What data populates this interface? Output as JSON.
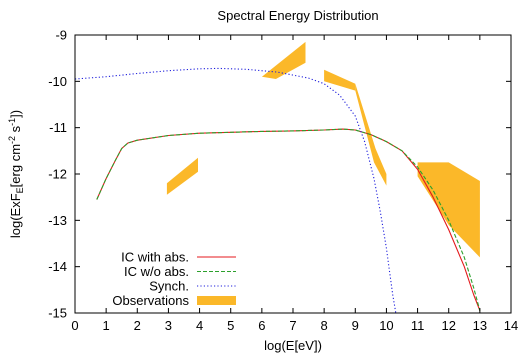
{
  "chart_data": {
    "type": "line",
    "title": "Spectral Energy Distribution",
    "xlabel": "log(E[eV])",
    "ylabel_parts": [
      "log(ExF",
      "E",
      "[erg cm",
      "-2",
      " s",
      "-1",
      "])"
    ],
    "xlim": [
      0,
      14
    ],
    "ylim": [
      -15,
      -9
    ],
    "x_ticks": [
      0,
      1,
      2,
      3,
      4,
      5,
      6,
      7,
      8,
      9,
      10,
      11,
      12,
      13,
      14
    ],
    "x_tick_labels": [
      "0",
      "1",
      "2",
      "3",
      "4",
      "5",
      "6",
      "7",
      "8",
      "9",
      "10",
      "11",
      "12",
      "13",
      "14"
    ],
    "y_ticks": [
      -15,
      -14,
      -13,
      -12,
      -11,
      -10,
      -9
    ],
    "y_tick_labels": [
      "-15",
      "-14",
      "-13",
      "-12",
      "-11",
      "-10",
      "-9"
    ],
    "grid": false,
    "legend_position": "bottom-left",
    "series": [
      {
        "name": "IC with abs.",
        "color": "#e41a1c",
        "style": "solid",
        "x": [
          0.7,
          1.0,
          1.3,
          1.5,
          1.7,
          2.0,
          3.0,
          4.0,
          5.0,
          6.0,
          7.0,
          8.0,
          8.6,
          9.0,
          9.5,
          10.0,
          10.5,
          11.0,
          11.5,
          12.0,
          12.5,
          12.8,
          13.0
        ],
        "y": [
          -12.55,
          -12.1,
          -11.7,
          -11.45,
          -11.33,
          -11.27,
          -11.17,
          -11.12,
          -11.1,
          -11.08,
          -11.07,
          -11.05,
          -11.03,
          -11.05,
          -11.15,
          -11.3,
          -11.5,
          -11.9,
          -12.5,
          -13.2,
          -14.0,
          -14.6,
          -14.95
        ]
      },
      {
        "name": "IC w/o abs.",
        "color": "#2ca02c",
        "style": "dashed",
        "x": [
          0.7,
          1.0,
          1.3,
          1.5,
          1.7,
          2.0,
          3.0,
          4.0,
          5.0,
          6.0,
          7.0,
          8.0,
          8.6,
          9.0,
          9.5,
          10.0,
          10.5,
          11.0,
          11.5,
          12.0,
          12.5,
          12.8,
          13.0
        ],
        "y": [
          -12.55,
          -12.1,
          -11.7,
          -11.45,
          -11.33,
          -11.27,
          -11.17,
          -11.12,
          -11.1,
          -11.08,
          -11.07,
          -11.05,
          -11.03,
          -11.05,
          -11.15,
          -11.3,
          -11.5,
          -11.85,
          -12.35,
          -13.0,
          -13.8,
          -14.45,
          -14.95
        ]
      },
      {
        "name": "Synch.",
        "color": "#1f1fdc",
        "style": "dotted",
        "x": [
          0.0,
          1.0,
          2.0,
          3.0,
          4.0,
          4.6,
          5.5,
          6.5,
          7.5,
          8.0,
          8.5,
          9.0,
          9.3,
          9.6,
          9.8,
          10.0,
          10.1,
          10.2,
          10.3
        ],
        "y": [
          -9.95,
          -9.9,
          -9.83,
          -9.77,
          -9.73,
          -9.72,
          -9.74,
          -9.8,
          -9.93,
          -10.05,
          -10.3,
          -10.75,
          -11.3,
          -12.1,
          -12.8,
          -13.6,
          -14.1,
          -14.6,
          -15.0
        ]
      }
    ],
    "observations": {
      "name": "Observations",
      "color": "#fbb829",
      "polygons": [
        [
          [
            2.95,
            -12.2
          ],
          [
            3.95,
            -11.65
          ],
          [
            3.95,
            -11.95
          ],
          [
            2.95,
            -12.45
          ]
        ],
        [
          [
            6.0,
            -9.9
          ],
          [
            7.4,
            -9.15
          ],
          [
            7.4,
            -9.6
          ],
          [
            6.45,
            -9.95
          ]
        ],
        [
          [
            8.0,
            -9.75
          ],
          [
            9.0,
            -10.05
          ],
          [
            9.0,
            -10.2
          ],
          [
            8.0,
            -10.0
          ]
        ],
        [
          [
            9.0,
            -10.05
          ],
          [
            9.65,
            -11.45
          ],
          [
            10.0,
            -12.0
          ],
          [
            10.0,
            -12.25
          ],
          [
            9.6,
            -11.75
          ],
          [
            9.0,
            -10.2
          ]
        ],
        [
          [
            11.0,
            -11.75
          ],
          [
            12.0,
            -11.75
          ],
          [
            13.0,
            -12.15
          ],
          [
            13.0,
            -13.8
          ],
          [
            12.0,
            -13.1
          ],
          [
            11.0,
            -12.05
          ]
        ]
      ]
    }
  }
}
